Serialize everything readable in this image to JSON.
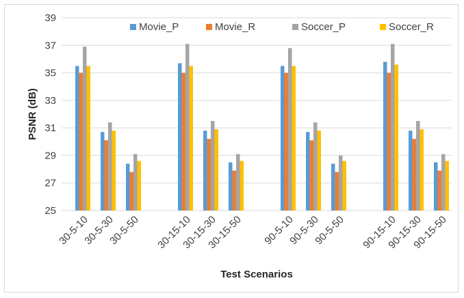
{
  "chart_data": {
    "type": "bar",
    "title": "",
    "xlabel": "Test Scenarios",
    "ylabel": "PSNR (dB)",
    "ylim": [
      25,
      39
    ],
    "yticks": [
      25,
      27,
      29,
      31,
      33,
      35,
      37,
      39
    ],
    "grid": true,
    "legend_position": "top",
    "categories": [
      "30-5-10",
      "30-5-30",
      "30-5-50",
      "30-15-10",
      "30-15-30",
      "30-15-50",
      "90-5-10",
      "90-5-30",
      "90-5-50",
      "90-15-10",
      "90-15-30",
      "90-15-50"
    ],
    "series": [
      {
        "name": "Movie_P",
        "color": "#5b9bd5",
        "values": [
          35.5,
          30.7,
          28.4,
          35.7,
          30.8,
          28.5,
          35.5,
          30.7,
          28.4,
          35.8,
          30.8,
          28.5
        ]
      },
      {
        "name": "Movie_R",
        "color": "#ed7d31",
        "values": [
          35.0,
          30.1,
          27.8,
          35.0,
          30.2,
          27.9,
          35.0,
          30.1,
          27.8,
          35.0,
          30.2,
          27.9
        ]
      },
      {
        "name": "Soccer_P",
        "color": "#a5a5a5",
        "values": [
          36.9,
          31.4,
          29.1,
          37.1,
          31.5,
          29.1,
          36.8,
          31.4,
          29.0,
          37.1,
          31.5,
          29.1
        ]
      },
      {
        "name": "Soccer_R",
        "color": "#ffc000",
        "values": [
          35.5,
          30.8,
          28.6,
          35.5,
          30.9,
          28.6,
          35.5,
          30.8,
          28.6,
          35.6,
          30.9,
          28.6
        ]
      }
    ]
  }
}
